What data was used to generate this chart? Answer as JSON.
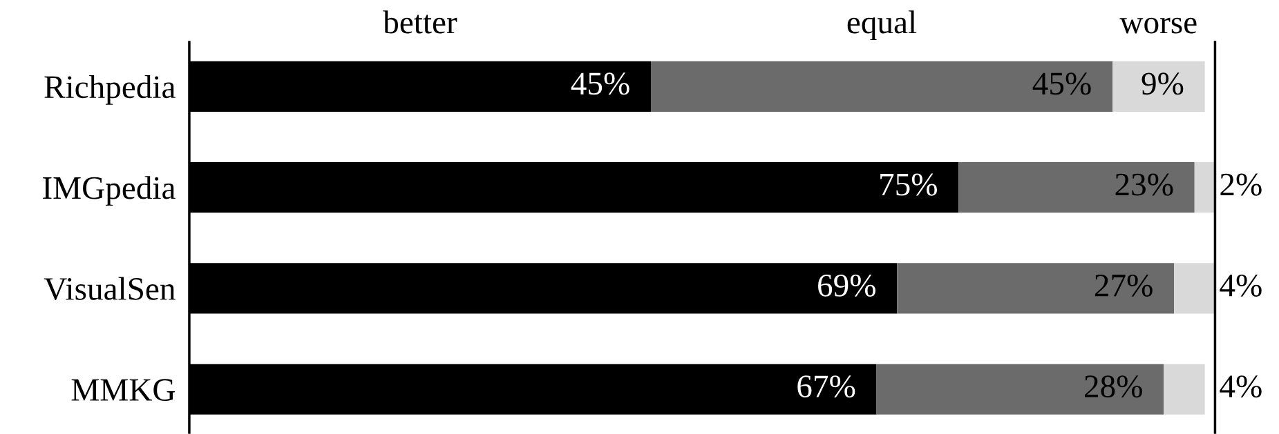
{
  "chart_data": {
    "type": "bar",
    "orientation": "horizontal",
    "stacked": true,
    "legend": false,
    "grid": false,
    "tick_labels": "y",
    "categories": [
      "Richpedia",
      "IMGpedia",
      "VisualSen",
      "MMKG"
    ],
    "series": [
      {
        "name": "better",
        "color": "#000000",
        "values": [
          45,
          75,
          69,
          67
        ],
        "value_labels": [
          "45%",
          "75%",
          "69%",
          "67%"
        ]
      },
      {
        "name": "equal",
        "color": "#6b6b6b",
        "values": [
          45,
          23,
          27,
          28
        ],
        "value_labels": [
          "45%",
          "23%",
          "27%",
          "28%"
        ]
      },
      {
        "name": "worse",
        "color": "#d9d9d9",
        "values": [
          9,
          2,
          4,
          4
        ],
        "value_labels": [
          "9%",
          "2%",
          "4%",
          "4%"
        ]
      }
    ]
  }
}
